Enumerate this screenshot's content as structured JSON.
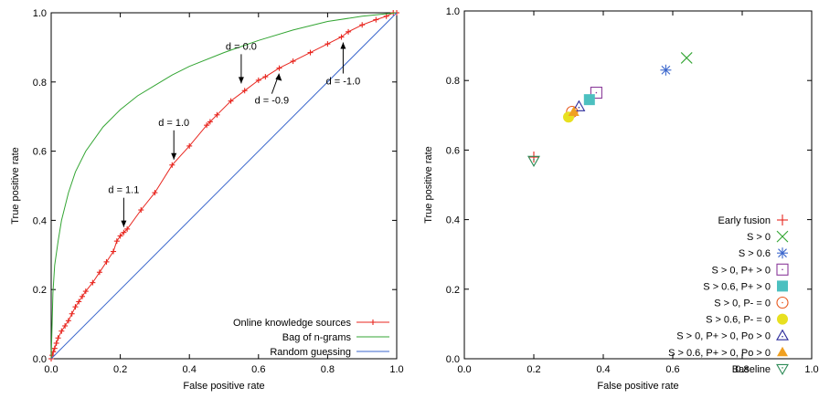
{
  "chart_data": [
    {
      "type": "line",
      "xlabel": "False positive rate",
      "ylabel": "True positive rate",
      "xlim": [
        0,
        1
      ],
      "ylim": [
        0,
        1
      ],
      "xticks": [
        "0.0",
        "0.2",
        "0.4",
        "0.6",
        "0.8",
        "1.0"
      ],
      "yticks": [
        "0.0",
        "0.2",
        "0.4",
        "0.6",
        "0.8",
        "1.0"
      ],
      "grid": false,
      "legend_position": "bottom-right",
      "series": [
        {
          "name": "Online knowledge sources",
          "color": "#e8261f",
          "marker": "plus",
          "points": [
            [
              0,
              0
            ],
            [
              0.003,
              0.01
            ],
            [
              0.006,
              0.02
            ],
            [
              0.01,
              0.03
            ],
            [
              0.015,
              0.045
            ],
            [
              0.02,
              0.06
            ],
            [
              0.03,
              0.08
            ],
            [
              0.04,
              0.095
            ],
            [
              0.05,
              0.11
            ],
            [
              0.06,
              0.13
            ],
            [
              0.07,
              0.15
            ],
            [
              0.08,
              0.165
            ],
            [
              0.09,
              0.18
            ],
            [
              0.1,
              0.195
            ],
            [
              0.12,
              0.22
            ],
            [
              0.14,
              0.25
            ],
            [
              0.16,
              0.28
            ],
            [
              0.18,
              0.31
            ],
            [
              0.19,
              0.34
            ],
            [
              0.2,
              0.355
            ],
            [
              0.21,
              0.365
            ],
            [
              0.22,
              0.375
            ],
            [
              0.26,
              0.43
            ],
            [
              0.3,
              0.48
            ],
            [
              0.35,
              0.56
            ],
            [
              0.4,
              0.615
            ],
            [
              0.45,
              0.675
            ],
            [
              0.46,
              0.685
            ],
            [
              0.48,
              0.705
            ],
            [
              0.52,
              0.745
            ],
            [
              0.56,
              0.775
            ],
            [
              0.6,
              0.805
            ],
            [
              0.62,
              0.815
            ],
            [
              0.66,
              0.84
            ],
            [
              0.7,
              0.86
            ],
            [
              0.75,
              0.885
            ],
            [
              0.8,
              0.91
            ],
            [
              0.84,
              0.93
            ],
            [
              0.86,
              0.945
            ],
            [
              0.9,
              0.965
            ],
            [
              0.94,
              0.98
            ],
            [
              0.97,
              0.99
            ],
            [
              0.99,
              1
            ],
            [
              1,
              1
            ]
          ]
        },
        {
          "name": "Bag of n-grams",
          "color": "#33a533",
          "marker": "none",
          "points": [
            [
              0,
              0
            ],
            [
              0.005,
              0.19
            ],
            [
              0.01,
              0.27
            ],
            [
              0.02,
              0.34
            ],
            [
              0.03,
              0.4
            ],
            [
              0.05,
              0.48
            ],
            [
              0.07,
              0.54
            ],
            [
              0.1,
              0.6
            ],
            [
              0.15,
              0.67
            ],
            [
              0.2,
              0.72
            ],
            [
              0.25,
              0.76
            ],
            [
              0.3,
              0.79
            ],
            [
              0.35,
              0.82
            ],
            [
              0.4,
              0.845
            ],
            [
              0.5,
              0.885
            ],
            [
              0.6,
              0.92
            ],
            [
              0.7,
              0.95
            ],
            [
              0.8,
              0.975
            ],
            [
              0.9,
              0.99
            ],
            [
              1,
              1
            ]
          ]
        },
        {
          "name": "Random guessing",
          "color": "#3a66cc",
          "marker": "none",
          "points": [
            [
              0,
              0
            ],
            [
              1,
              1
            ]
          ]
        }
      ],
      "annotations": [
        {
          "text": "d = 1.1",
          "x": 0.21,
          "y": 0.365,
          "dir": "down"
        },
        {
          "text": "d = 1.0",
          "x": 0.355,
          "y": 0.56,
          "dir": "down"
        },
        {
          "text": "d = 0.0",
          "x": 0.55,
          "y": 0.78,
          "dir": "down"
        },
        {
          "text": "d = -0.9",
          "x": 0.665,
          "y": 0.84,
          "dir": "up-right"
        },
        {
          "text": "d = -1.0",
          "x": 0.845,
          "y": 0.93,
          "dir": "up"
        }
      ]
    },
    {
      "type": "scatter",
      "xlabel": "False positive rate",
      "ylabel": "True positive rate",
      "xlim": [
        0,
        1
      ],
      "ylim": [
        0,
        1
      ],
      "xticks": [
        "0.0",
        "0.2",
        "0.4",
        "0.6",
        "0.8",
        "1.0"
      ],
      "yticks": [
        "0.0",
        "0.2",
        "0.4",
        "0.6",
        "0.8",
        "1.0"
      ],
      "grid": false,
      "legend_position": "bottom-right",
      "series": [
        {
          "name": "Early fusion",
          "x": 0.2,
          "y": 0.58,
          "marker": "plus",
          "color": "#e8261f"
        },
        {
          "name": "S > 0",
          "x": 0.64,
          "y": 0.865,
          "marker": "cross",
          "color": "#33a533"
        },
        {
          "name": "S > 0.6",
          "x": 0.58,
          "y": 0.83,
          "marker": "star",
          "color": "#3a66cc"
        },
        {
          "name": "S > 0, P+ > 0",
          "x": 0.38,
          "y": 0.765,
          "marker": "square-open",
          "color": "#8a3a9a"
        },
        {
          "name": "S > 0.6, P+ > 0",
          "x": 0.36,
          "y": 0.745,
          "marker": "square-filled",
          "color": "#4cc0c0"
        },
        {
          "name": "S > 0, P- = 0",
          "x": 0.31,
          "y": 0.71,
          "marker": "circle-open",
          "color": "#e8591f"
        },
        {
          "name": "S > 0.6, P- = 0",
          "x": 0.3,
          "y": 0.695,
          "marker": "circle-filled",
          "color": "#e8e020"
        },
        {
          "name": "S > 0, P+ > 0, Po > 0",
          "x": 0.33,
          "y": 0.725,
          "marker": "triangle-open",
          "color": "#2a2a9a"
        },
        {
          "name": "S > 0.6, P+ > 0, Po > 0",
          "x": 0.315,
          "y": 0.71,
          "marker": "triangle-filled",
          "color": "#f0a020"
        },
        {
          "name": "Baseline",
          "x": 0.2,
          "y": 0.57,
          "marker": "triangle-down-open",
          "color": "#2e8b57"
        }
      ]
    }
  ]
}
